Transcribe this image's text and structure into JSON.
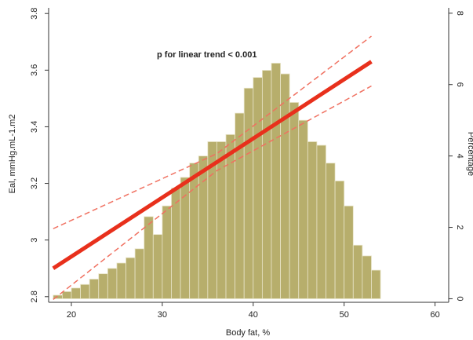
{
  "chart_data": {
    "type": "histogram",
    "annotation": "p for linear trend < 0.001",
    "xlabel": "Body fat, %",
    "ylabel": "Eal, mmHg.mL-1.m2",
    "y2label": "Percentage",
    "bins": [
      18,
      19,
      20,
      21,
      22,
      23,
      24,
      25,
      26,
      27,
      28,
      29,
      30,
      31,
      32,
      33,
      34,
      35,
      36,
      37,
      38,
      39,
      40,
      41,
      42,
      43,
      44,
      45,
      46,
      47,
      48,
      49,
      50,
      51,
      52,
      53,
      54
    ],
    "counts": [
      0.1,
      0.2,
      0.3,
      0.4,
      0.55,
      0.7,
      0.85,
      1.0,
      1.15,
      1.4,
      2.3,
      1.8,
      2.6,
      3.1,
      3.4,
      3.8,
      4.0,
      4.4,
      4.4,
      4.6,
      5.2,
      5.9,
      6.2,
      6.4,
      6.6,
      6.3,
      5.5,
      5.0,
      4.4,
      4.3,
      3.8,
      3.3,
      2.6,
      1.5,
      1.2,
      0.8
    ],
    "bar_color": "#b7ae6c",
    "hist_axis": "y2",
    "overlay": {
      "type": "line",
      "x": [
        18,
        36,
        53
      ],
      "series": [
        {
          "values": [
            2.9,
            3.275,
            3.63
          ],
          "color": "#e8301c",
          "style": "solid"
        },
        {
          "values": [
            2.79,
            3.245,
            3.544
          ],
          "color": "#f07060",
          "style": "dashed"
        },
        {
          "values": [
            3.04,
            3.305,
            3.72
          ],
          "color": "#f07060",
          "style": "dashed"
        }
      ]
    },
    "xlim": [
      17.5,
      61.5
    ],
    "xticks": [
      20,
      30,
      40,
      50,
      60
    ],
    "ylim": [
      2.78,
      3.82
    ],
    "yticks": [
      2.8,
      3,
      3.2,
      3.4,
      3.6,
      3.8
    ],
    "y2lim": [
      -0.1,
      8.15
    ],
    "y2ticks": [
      0,
      2,
      4,
      6,
      8
    ]
  }
}
